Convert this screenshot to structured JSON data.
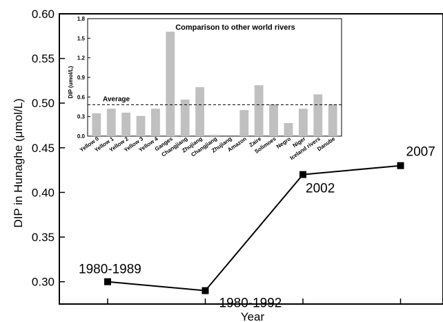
{
  "chart_data": [
    {
      "type": "line",
      "title": "",
      "xlabel": "Year",
      "ylabel": "DIP in Hunaghe (μmol/L)",
      "ylim": [
        0.275,
        0.6
      ],
      "yticks": [
        "0.30",
        "0.35",
        "0.40",
        "0.45",
        "0.50",
        "0.55",
        "0.60"
      ],
      "grid": false,
      "points": [
        {
          "label": "1980-1989",
          "y": 0.3
        },
        {
          "label": "1980-1992",
          "y": 0.29
        },
        {
          "label": "2002",
          "y": 0.42
        },
        {
          "label": "2007",
          "y": 0.43
        }
      ]
    },
    {
      "type": "bar",
      "title": "Comparison to other world rivers",
      "xlabel": "",
      "ylabel": "DIP (umol/L)",
      "ylim": [
        0,
        1.8
      ],
      "yticks": [
        "0.0",
        "0.3",
        "0.6",
        "0.9",
        "1.2",
        "1.5",
        "1.8"
      ],
      "categories": [
        "Yellow 0",
        "Yellow 1",
        "Yellow 2",
        "Yellow 3",
        "Yellow 4",
        "Ganges",
        "Changjiang",
        "Zhujiang",
        "Changjiang",
        "Zhujiang",
        "Amazon",
        "Zaire",
        "Solimoes",
        "Negro",
        "Niger",
        "Iceland rivers",
        "Danube"
      ],
      "values": [
        0.35,
        0.42,
        0.36,
        0.31,
        0.42,
        1.6,
        0.56,
        0.75,
        0.02,
        0.0,
        0.4,
        0.78,
        0.49,
        0.2,
        0.42,
        0.64,
        0.49
      ],
      "average": {
        "label": "Average",
        "value": 0.48
      }
    }
  ],
  "colors": {
    "bar": "#c0c0c0",
    "line": "#000000",
    "marker": "#000000"
  }
}
